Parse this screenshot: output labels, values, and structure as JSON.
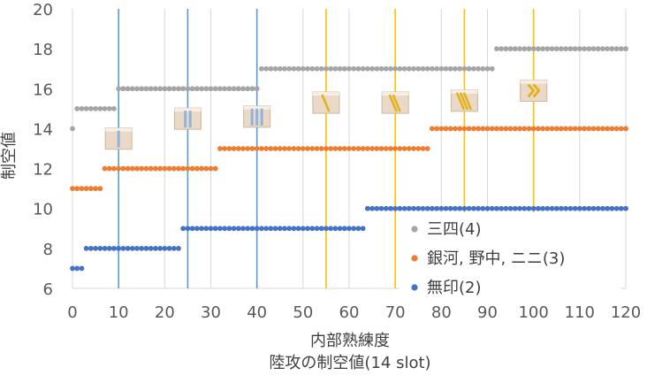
{
  "chart_data": {
    "type": "scatter",
    "xlabel": "内部熟練度",
    "subtitle": "陸攻の制空値(14 slot)",
    "ylabel": "制空値",
    "xlim": [
      0,
      120
    ],
    "ylim": [
      6,
      20
    ],
    "xticks": [
      0,
      10,
      20,
      30,
      40,
      50,
      60,
      70,
      80,
      90,
      100,
      110,
      120
    ],
    "yticks": [
      6,
      8,
      10,
      12,
      14,
      16,
      18,
      20
    ],
    "grid": "vertical",
    "legend_position": "bottom-right",
    "series": [
      {
        "name": "三四(4)",
        "color": "#a5a5a5",
        "steps": [
          {
            "x_from": 0,
            "x_to": 0,
            "y": 14
          },
          {
            "x_from": 1,
            "x_to": 9,
            "y": 15
          },
          {
            "x_from": 10,
            "x_to": 40,
            "y": 16
          },
          {
            "x_from": 41,
            "x_to": 91,
            "y": 17
          },
          {
            "x_from": 92,
            "x_to": 120,
            "y": 18
          }
        ]
      },
      {
        "name": "銀河, 野中, ニニ(3)",
        "color": "#ed7d31",
        "steps": [
          {
            "x_from": 0,
            "x_to": 6,
            "y": 11
          },
          {
            "x_from": 7,
            "x_to": 31,
            "y": 12
          },
          {
            "x_from": 32,
            "x_to": 77,
            "y": 13
          },
          {
            "x_from": 78,
            "x_to": 120,
            "y": 14
          }
        ]
      },
      {
        "name": "無印(2)",
        "color": "#4472c4",
        "steps": [
          {
            "x_from": 0,
            "x_to": 2,
            "y": 7
          },
          {
            "x_from": 3,
            "x_to": 23,
            "y": 8
          },
          {
            "x_from": 24,
            "x_to": 63,
            "y": 9
          },
          {
            "x_from": 64,
            "x_to": 120,
            "y": 10
          }
        ]
      }
    ],
    "reference_lines": [
      {
        "x": 10,
        "color": "#5b9bd5"
      },
      {
        "x": 25,
        "color": "#5b9bd5"
      },
      {
        "x": 40,
        "color": "#5b9bd5"
      },
      {
        "x": 55,
        "color": "#ffc000"
      },
      {
        "x": 70,
        "color": "#ffc000"
      },
      {
        "x": 85,
        "color": "#ffc000"
      },
      {
        "x": 100,
        "color": "#ffc000"
      }
    ],
    "rank_badges": [
      {
        "x": 10,
        "y": 13.5,
        "icon": "rank-1-icon",
        "kind": "blue",
        "stripes": 1
      },
      {
        "x": 25,
        "y": 14.5,
        "icon": "rank-2-icon",
        "kind": "blue",
        "stripes": 2
      },
      {
        "x": 40,
        "y": 14.6,
        "icon": "rank-3-icon",
        "kind": "blue",
        "stripes": 3
      },
      {
        "x": 55,
        "y": 15.3,
        "icon": "rank-4-icon",
        "kind": "gold",
        "stripes": 1
      },
      {
        "x": 70,
        "y": 15.3,
        "icon": "rank-5-icon",
        "kind": "gold",
        "stripes": 2
      },
      {
        "x": 85,
        "y": 15.4,
        "icon": "rank-6-icon",
        "kind": "gold",
        "stripes": 3
      },
      {
        "x": 100,
        "y": 15.9,
        "icon": "rank-7-icon",
        "kind": "chevron",
        "stripes": 2
      }
    ]
  }
}
